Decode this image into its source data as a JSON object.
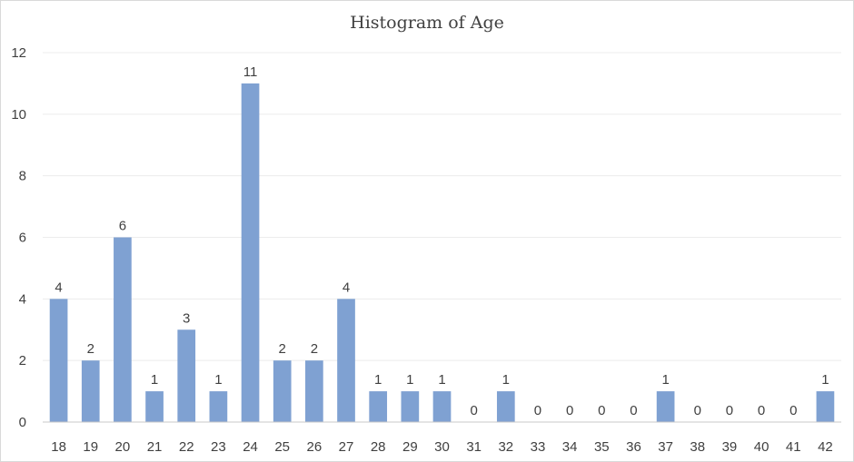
{
  "chart_data": {
    "type": "bar",
    "title": "Histogram of Age",
    "xlabel": "",
    "ylabel": "",
    "categories": [
      "18",
      "19",
      "20",
      "21",
      "22",
      "23",
      "24",
      "25",
      "26",
      "27",
      "28",
      "29",
      "30",
      "31",
      "32",
      "33",
      "34",
      "35",
      "36",
      "37",
      "38",
      "39",
      "40",
      "41",
      "42"
    ],
    "values": [
      4,
      2,
      6,
      1,
      3,
      1,
      11,
      2,
      2,
      4,
      1,
      1,
      1,
      0,
      1,
      0,
      0,
      0,
      0,
      1,
      0,
      0,
      0,
      0,
      1
    ],
    "ylim": [
      0,
      12
    ],
    "yticks": [
      0,
      2,
      4,
      6,
      8,
      10,
      12
    ],
    "grid": true,
    "data_labels": true,
    "colors": {
      "bar": "#7fa1d2",
      "grid": "#ececec",
      "axis": "#c8c8c8",
      "text": "#404040"
    }
  }
}
